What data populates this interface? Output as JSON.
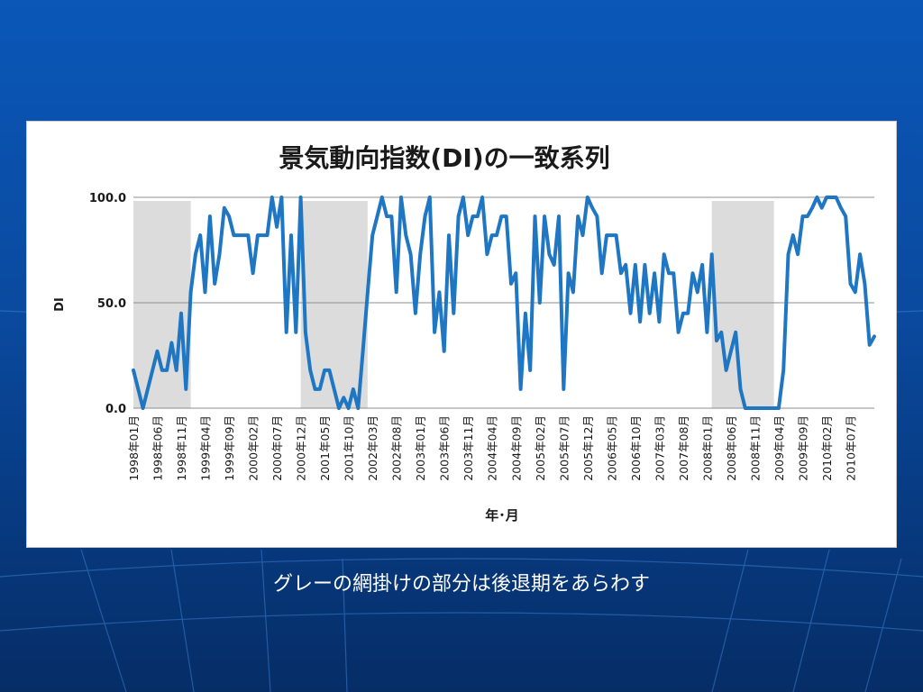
{
  "caption": "グレーの網掛けの部分は後退期をあらわす",
  "colors": {
    "line": "#1f77c4",
    "shade": "#dcdcdc",
    "grid": "#8c8c8c",
    "background_top": "#0a57b8",
    "background_bottom": "#062d66"
  },
  "chart_data": {
    "type": "line",
    "title": "景気動向指数(DI)の一致系列",
    "xlabel": "年･月",
    "ylabel": "DI",
    "ylim": [
      0,
      100
    ],
    "yticks": [
      "0.0",
      "50.0",
      "100.0"
    ],
    "grid": true,
    "start_month": "1998年01月",
    "x_tick_labels": [
      "1998年01月",
      "1998年06月",
      "1998年11月",
      "1999年04月",
      "1999年09月",
      "2000年02月",
      "2000年07月",
      "2000年12月",
      "2001年05月",
      "2001年10月",
      "2002年03月",
      "2002年08月",
      "2003年01月",
      "2003年06月",
      "2003年11月",
      "2004年04月",
      "2004年09月",
      "2005年02月",
      "2005年07月",
      "2005年12月",
      "2006年05月",
      "2006年10月",
      "2007年03月",
      "2007年08月",
      "2008年01月",
      "2008年06月",
      "2008年11月",
      "2009年04月",
      "2009年09月",
      "2010年02月",
      "2010年07月"
    ],
    "recession_periods": [
      {
        "start": "1998年01月",
        "end": "1999年01月"
      },
      {
        "start": "2000年12月",
        "end": "2002年02月"
      },
      {
        "start": "2008年02月",
        "end": "2009年03月"
      }
    ],
    "series": [
      {
        "values": [
          18,
          9,
          0,
          9,
          18,
          27,
          18,
          18,
          31,
          18,
          45,
          9,
          55,
          73,
          82,
          55,
          91,
          59,
          73,
          95,
          91,
          82,
          82,
          82,
          82,
          64,
          82,
          82,
          82,
          100,
          86,
          100,
          36,
          82,
          36,
          100,
          36,
          18,
          9,
          9,
          18,
          18,
          9,
          0,
          5,
          0,
          9,
          0,
          27,
          55,
          82,
          91,
          100,
          91,
          91,
          55,
          100,
          82,
          73,
          45,
          73,
          91,
          100,
          36,
          55,
          27,
          82,
          45,
          91,
          100,
          82,
          91,
          91,
          100,
          73,
          82,
          82,
          91,
          91,
          59,
          64,
          9,
          45,
          18,
          91,
          50,
          91,
          73,
          68,
          91,
          9,
          64,
          55,
          91,
          82,
          100,
          95,
          91,
          64,
          82,
          82,
          82,
          64,
          68,
          45,
          68,
          41,
          68,
          45,
          64,
          41,
          73,
          64,
          64,
          36,
          45,
          45,
          64,
          55,
          68,
          36,
          73,
          32,
          36,
          18,
          27,
          36,
          9,
          0,
          0,
          0,
          0,
          0,
          0,
          0,
          0,
          18,
          73,
          82,
          73,
          91,
          91,
          95,
          100,
          95,
          100,
          100,
          100,
          95,
          91,
          59,
          55,
          73,
          59,
          30,
          34
        ]
      }
    ]
  }
}
